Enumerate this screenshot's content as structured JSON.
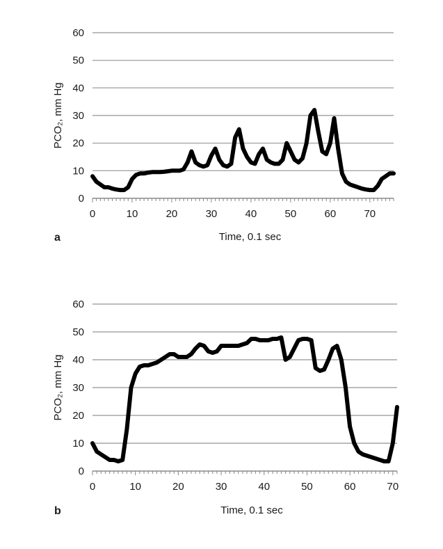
{
  "chart_data": [
    {
      "type": "line",
      "panel_label": "a",
      "xlabel": "Time, 0.1 sec",
      "ylabel": "PCO₂, mm Hg",
      "xlim": [
        0,
        76
      ],
      "ylim": [
        0,
        60
      ],
      "x_ticks": [
        "0",
        "10",
        "20",
        "30",
        "40",
        "50",
        "60",
        "70"
      ],
      "y_ticks": [
        "0",
        "10",
        "20",
        "30",
        "40",
        "50",
        "60"
      ],
      "grid": "horizontal",
      "series": [
        {
          "color": "#000000",
          "x": [
            0,
            1,
            2,
            3,
            4,
            5,
            6,
            7,
            8,
            9,
            10,
            11,
            12,
            13,
            14,
            15,
            16,
            17,
            18,
            19,
            20,
            21,
            22,
            23,
            24,
            25,
            26,
            27,
            28,
            29,
            30,
            31,
            32,
            33,
            34,
            35,
            36,
            37,
            38,
            39,
            40,
            41,
            42,
            43,
            44,
            45,
            46,
            47,
            48,
            49,
            50,
            51,
            52,
            53,
            54,
            55,
            56,
            57,
            58,
            59,
            60,
            61,
            62,
            63,
            64,
            65,
            66,
            67,
            68,
            69,
            70,
            71,
            72,
            73,
            74,
            75,
            76
          ],
          "y": [
            8,
            6,
            5,
            4,
            4,
            3.5,
            3.2,
            3,
            3,
            4,
            7,
            8.5,
            9,
            9,
            9.3,
            9.5,
            9.5,
            9.5,
            9.6,
            9.8,
            10,
            10,
            10,
            10.5,
            13,
            17,
            13,
            12,
            11.5,
            12,
            15.5,
            18,
            14,
            12,
            11.5,
            12.5,
            22,
            25,
            18,
            15,
            13,
            12.5,
            16,
            18,
            14,
            13,
            12.5,
            12.5,
            14,
            20,
            17,
            14,
            13,
            14.5,
            20,
            30,
            32,
            24,
            17,
            16,
            20,
            29,
            18,
            9,
            6,
            5,
            4.5,
            4,
            3.5,
            3.2,
            3,
            3,
            4.5,
            7,
            8,
            9,
            9
          ]
        }
      ]
    },
    {
      "type": "line",
      "panel_label": "b",
      "xlabel": "Time, 0.1 sec",
      "ylabel": "PCO₂, mm Hg",
      "xlim": [
        0,
        71
      ],
      "ylim": [
        0,
        60
      ],
      "x_ticks": [
        "0",
        "10",
        "20",
        "30",
        "40",
        "50",
        "60",
        "70"
      ],
      "y_ticks": [
        "0",
        "10",
        "20",
        "30",
        "40",
        "50",
        "60"
      ],
      "grid": "horizontal",
      "series": [
        {
          "color": "#000000",
          "x": [
            0,
            1,
            2,
            3,
            4,
            5,
            6,
            7,
            8,
            9,
            10,
            11,
            12,
            13,
            14,
            15,
            16,
            17,
            18,
            19,
            20,
            21,
            22,
            23,
            24,
            25,
            26,
            27,
            28,
            29,
            30,
            31,
            32,
            33,
            34,
            35,
            36,
            37,
            38,
            39,
            40,
            41,
            42,
            43,
            44,
            45,
            46,
            47,
            48,
            49,
            50,
            51,
            52,
            53,
            54,
            55,
            56,
            57,
            58,
            59,
            60,
            61,
            62,
            63,
            64,
            65,
            66,
            67,
            68,
            69,
            70,
            71
          ],
          "y": [
            10,
            7,
            6,
            5,
            4,
            4,
            3.5,
            4,
            15,
            30,
            35,
            37.5,
            38,
            38,
            38.5,
            39,
            40,
            41,
            42,
            42,
            41,
            41,
            41,
            42,
            44,
            45.5,
            45,
            43,
            42.5,
            43,
            45,
            45,
            45,
            45,
            45,
            45.5,
            46,
            47.5,
            47.5,
            47,
            47,
            47,
            47.5,
            47.5,
            48,
            40,
            41,
            44,
            47,
            47.5,
            47.5,
            47,
            37,
            36,
            36.5,
            40,
            44,
            45,
            40,
            30,
            16,
            10,
            7,
            6,
            5.5,
            5,
            4.5,
            4,
            3.5,
            3.5,
            10,
            23
          ]
        }
      ]
    }
  ]
}
